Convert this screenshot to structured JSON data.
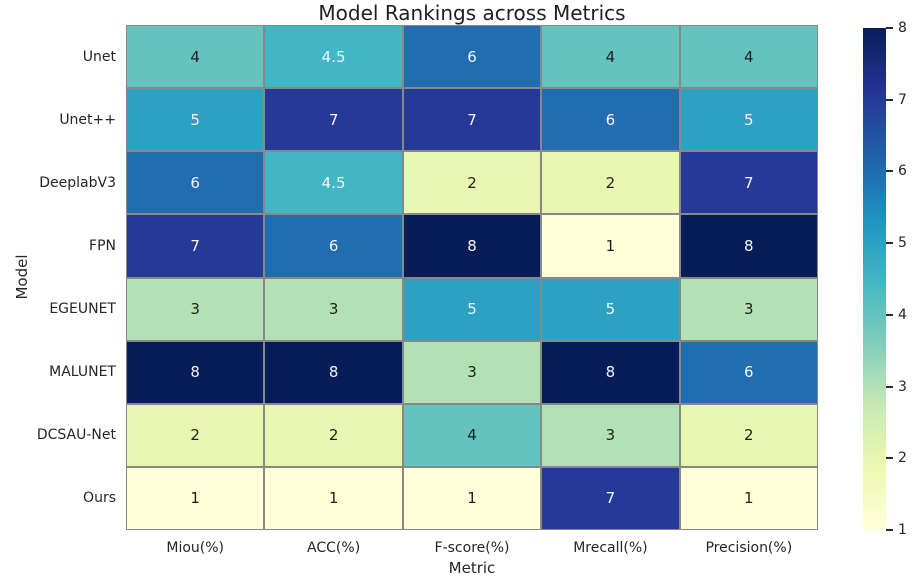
{
  "chart_data": {
    "type": "heatmap",
    "title": "Model Rankings across Metrics",
    "xlabel": "Metric",
    "ylabel": "Model",
    "columns": [
      "Miou(%)",
      "ACC(%)",
      "F-score(%)",
      "Mrecall(%)",
      "Precision(%)"
    ],
    "rows": [
      "Unet",
      "Unet++",
      "DeeplabV3",
      "FPN",
      "EGEUNET",
      "MALUNET",
      "DCSAU-Net",
      "Ours"
    ],
    "values": [
      [
        4,
        4.5,
        6,
        4,
        4
      ],
      [
        5,
        7,
        7,
        6,
        5
      ],
      [
        6,
        4.5,
        2,
        2,
        7
      ],
      [
        7,
        6,
        8,
        1,
        8
      ],
      [
        3,
        3,
        5,
        5,
        3
      ],
      [
        8,
        8,
        3,
        8,
        6
      ],
      [
        2,
        2,
        4,
        3,
        2
      ],
      [
        1,
        1,
        1,
        7,
        1
      ]
    ],
    "colormap": {
      "name": "YlGnBu",
      "stops": [
        "#ffffd9",
        "#edf8b1",
        "#c7e9b4",
        "#7fcdbb",
        "#41b6c4",
        "#1d91c0",
        "#225ea8",
        "#253494",
        "#081d58"
      ],
      "value_colors": {
        "1": "#ffffd9",
        "2": "#e8f6b1",
        "3": "#b2e1b6",
        "4": "#64c3bf",
        "4.5": "#41b6c4",
        "5": "#2ca1c2",
        "6": "#216daf",
        "7": "#253a97",
        "8": "#081d58"
      }
    },
    "colorbar": {
      "min": 1,
      "max": 8,
      "ticks": [
        1,
        2,
        3,
        4,
        5,
        6,
        7,
        8
      ]
    },
    "annot_dark_text": "#1f1f1f",
    "annot_light_text": "#f5f5f5",
    "light_text_min_value": 4.5,
    "grid_line_color": "#888888",
    "grid": false,
    "legend_position": "right-colorbar"
  }
}
